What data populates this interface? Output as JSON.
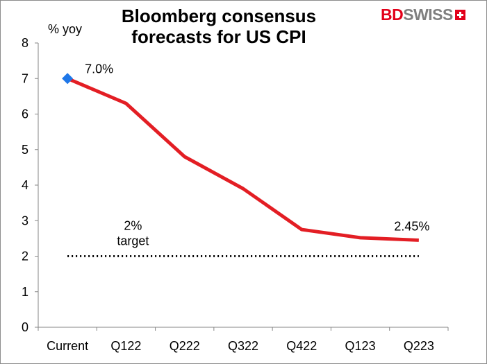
{
  "chart_data": {
    "type": "line",
    "title": "Bloomberg consensus forecasts for US CPI",
    "ylabel": "% yoy",
    "xlabel": "",
    "categories": [
      "Current",
      "Q122",
      "Q222",
      "Q322",
      "Q422",
      "Q123",
      "Q223"
    ],
    "series": [
      {
        "name": "US CPI forecast",
        "values": [
          7.0,
          6.3,
          4.8,
          3.9,
          2.75,
          2.52,
          2.45
        ],
        "color": "#e31e24"
      },
      {
        "name": "2% target",
        "values": [
          2,
          2,
          2,
          2,
          2,
          2,
          2
        ],
        "color": "#000000",
        "style": "dotted"
      }
    ],
    "ylim": [
      0,
      8
    ],
    "yticks": [
      0,
      1,
      2,
      3,
      4,
      5,
      6,
      7,
      8
    ],
    "marker": {
      "point": "Current",
      "shape": "diamond",
      "color": "#1f77e8"
    },
    "annotations": {
      "start_label": "7.0%",
      "end_label": "2.45%",
      "target_label_line1": "2%",
      "target_label_line2": "target"
    },
    "legend": "none",
    "grid": false
  },
  "logo": {
    "bd": "BD",
    "swiss": "SWISS"
  }
}
